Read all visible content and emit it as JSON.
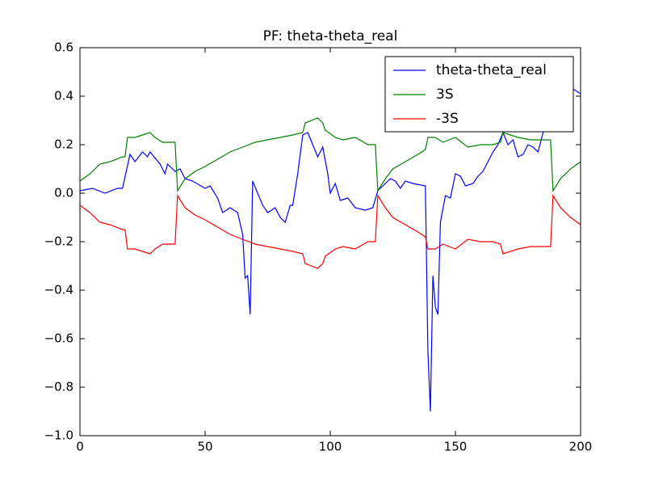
{
  "chart_data": {
    "type": "line",
    "title": "PF: theta-theta_real",
    "xlim": [
      0,
      200
    ],
    "xticks": [
      0,
      50,
      100,
      150,
      200
    ],
    "ylim": [
      -1.0,
      0.6
    ],
    "yticks": [
      {
        "value": -1.0,
        "label": "−1.0"
      },
      {
        "value": -0.8,
        "label": "−0.8"
      },
      {
        "value": -0.6,
        "label": "−0.6"
      },
      {
        "value": -0.4,
        "label": "−0.4"
      },
      {
        "value": -0.2,
        "label": "−0.2"
      },
      {
        "value": 0,
        "label": "0.0"
      },
      0.2,
      0.4,
      0.6
    ],
    "grid": false,
    "legend": "upper-right",
    "series": [
      {
        "name": "theta-theta_real",
        "color": "#0000ff",
        "x": [
          0,
          5,
          10,
          15,
          17,
          20,
          22,
          25,
          27,
          28,
          32,
          34,
          35,
          38,
          40,
          42,
          45,
          50,
          52,
          55,
          57,
          60,
          63,
          65,
          66,
          67,
          68,
          69,
          71,
          73,
          75,
          78,
          80,
          82,
          84,
          85,
          87,
          89,
          91,
          93,
          95,
          97,
          99,
          100,
          102,
          104,
          107,
          110,
          114,
          117,
          119,
          122,
          124,
          126,
          128,
          130,
          133,
          138,
          139,
          140,
          141,
          142,
          143,
          144,
          146,
          148,
          150,
          152,
          154,
          157,
          159,
          161,
          163,
          165,
          167,
          169,
          171,
          173,
          175,
          177,
          179,
          181,
          183,
          185,
          188,
          190,
          197,
          200
        ],
        "values": [
          0.01,
          0.02,
          0.0,
          0.02,
          0.02,
          0.16,
          0.13,
          0.17,
          0.15,
          0.17,
          0.12,
          0.08,
          0.12,
          0.09,
          0.1,
          0.06,
          0.05,
          0.02,
          0.03,
          -0.02,
          -0.08,
          -0.06,
          -0.08,
          -0.17,
          -0.35,
          -0.34,
          -0.5,
          0.05,
          0.0,
          -0.05,
          -0.08,
          -0.06,
          -0.1,
          -0.12,
          -0.05,
          -0.05,
          0.08,
          0.24,
          0.25,
          0.2,
          0.15,
          0.19,
          0.08,
          0.0,
          0.04,
          -0.03,
          -0.02,
          -0.06,
          -0.07,
          -0.06,
          0.01,
          0.04,
          0.06,
          0.05,
          0.02,
          0.05,
          0.04,
          0.03,
          -0.65,
          -0.9,
          -0.34,
          -0.47,
          -0.5,
          -0.12,
          -0.01,
          -0.02,
          0.08,
          0.07,
          0.03,
          0.04,
          0.07,
          0.09,
          0.13,
          0.17,
          0.2,
          0.25,
          0.2,
          0.22,
          0.15,
          0.16,
          0.2,
          0.19,
          0.17,
          0.25,
          0.4,
          0.45,
          0.43,
          0.41
        ]
      },
      {
        "name": "3S",
        "color": "#008000",
        "x": [
          0,
          4,
          8,
          12,
          17,
          18,
          19,
          22,
          25,
          28,
          30,
          33,
          38,
          39,
          42,
          46,
          50,
          55,
          60,
          65,
          70,
          75,
          80,
          85,
          89,
          90,
          95,
          97,
          98,
          102,
          105,
          110,
          115,
          118,
          119,
          122,
          125,
          130,
          135,
          138,
          139,
          142,
          145,
          150,
          155,
          160,
          165,
          168,
          169,
          172,
          175,
          180,
          185,
          188,
          189,
          192,
          196,
          200
        ],
        "values": [
          0.05,
          0.08,
          0.12,
          0.13,
          0.15,
          0.15,
          0.23,
          0.23,
          0.24,
          0.25,
          0.23,
          0.21,
          0.21,
          0.01,
          0.06,
          0.09,
          0.11,
          0.14,
          0.17,
          0.19,
          0.21,
          0.22,
          0.23,
          0.24,
          0.25,
          0.29,
          0.31,
          0.29,
          0.26,
          0.23,
          0.22,
          0.23,
          0.2,
          0.2,
          0.01,
          0.06,
          0.1,
          0.13,
          0.16,
          0.18,
          0.23,
          0.23,
          0.21,
          0.23,
          0.19,
          0.2,
          0.2,
          0.21,
          0.25,
          0.24,
          0.23,
          0.22,
          0.22,
          0.22,
          0.01,
          0.06,
          0.1,
          0.13
        ]
      },
      {
        "name": "-3S",
        "color": "#ff0000",
        "x": [
          0,
          4,
          8,
          12,
          17,
          18,
          19,
          22,
          25,
          28,
          30,
          33,
          38,
          39,
          42,
          46,
          50,
          55,
          60,
          65,
          70,
          75,
          80,
          85,
          89,
          90,
          95,
          97,
          98,
          102,
          105,
          110,
          115,
          118,
          119,
          122,
          125,
          130,
          135,
          138,
          139,
          142,
          145,
          150,
          155,
          160,
          165,
          168,
          169,
          172,
          175,
          180,
          185,
          188,
          189,
          192,
          196,
          200
        ],
        "values": [
          -0.05,
          -0.08,
          -0.12,
          -0.13,
          -0.15,
          -0.15,
          -0.23,
          -0.23,
          -0.24,
          -0.25,
          -0.23,
          -0.21,
          -0.21,
          -0.01,
          -0.06,
          -0.09,
          -0.11,
          -0.14,
          -0.17,
          -0.19,
          -0.21,
          -0.22,
          -0.23,
          -0.24,
          -0.25,
          -0.29,
          -0.31,
          -0.29,
          -0.26,
          -0.23,
          -0.22,
          -0.23,
          -0.2,
          -0.2,
          -0.01,
          -0.06,
          -0.1,
          -0.13,
          -0.16,
          -0.18,
          -0.23,
          -0.23,
          -0.21,
          -0.23,
          -0.19,
          -0.2,
          -0.2,
          -0.21,
          -0.25,
          -0.24,
          -0.23,
          -0.22,
          -0.22,
          -0.22,
          -0.01,
          -0.06,
          -0.1,
          -0.13
        ]
      }
    ]
  }
}
